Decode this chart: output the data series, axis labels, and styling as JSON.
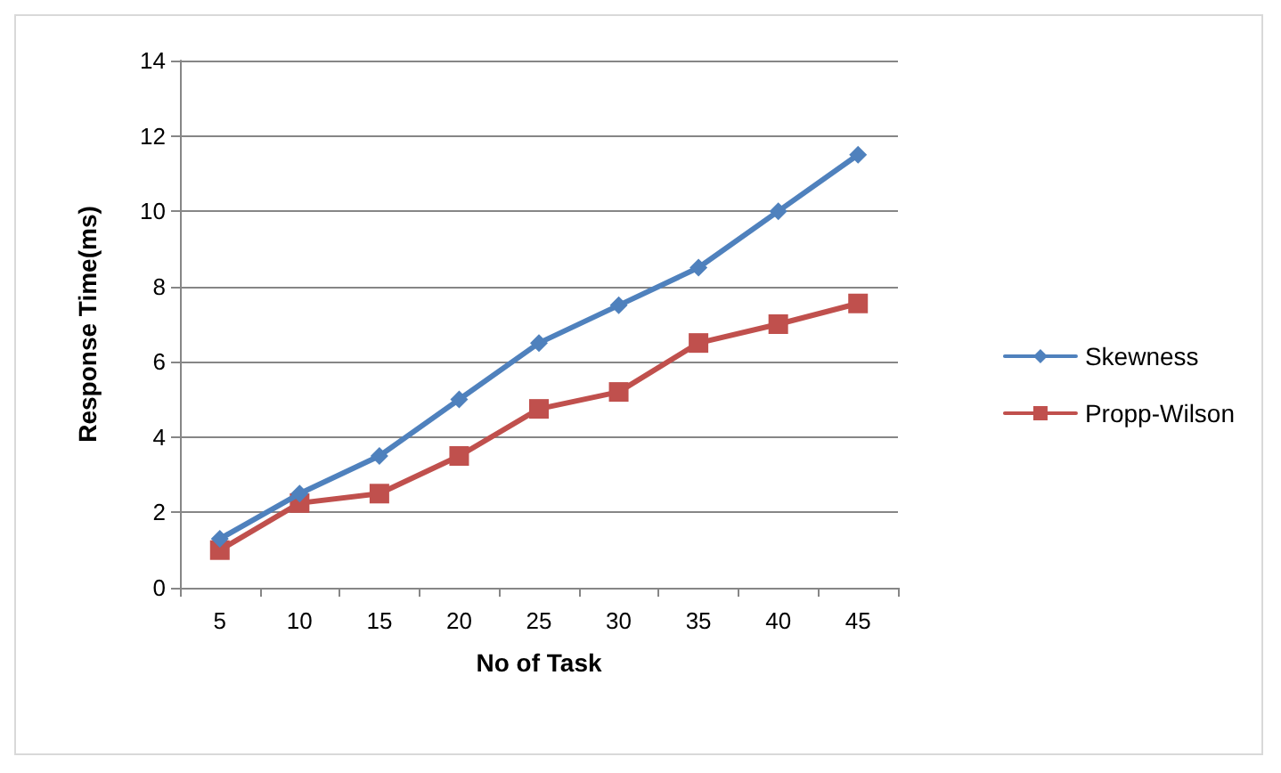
{
  "chart_data": {
    "type": "line",
    "xlabel": "No of Task",
    "ylabel": "Response Time(ms)",
    "categories": [
      "5",
      "10",
      "15",
      "20",
      "25",
      "30",
      "35",
      "40",
      "45"
    ],
    "series": [
      {
        "name": "Skewness",
        "color": "#4f81bd",
        "marker": "diamond",
        "values": [
          1.3,
          2.5,
          3.5,
          5,
          6.5,
          7.5,
          8.5,
          10,
          11.5
        ]
      },
      {
        "name": "Propp-Wilson",
        "color": "#c0504d",
        "marker": "square",
        "values": [
          1.0,
          2.25,
          2.5,
          3.5,
          4.75,
          5.2,
          6.5,
          7,
          7.55
        ]
      }
    ],
    "ylim": [
      0,
      14
    ],
    "yticks": [
      0,
      2,
      4,
      6,
      8,
      10,
      12,
      14
    ],
    "grid": "y",
    "legend": "right"
  }
}
